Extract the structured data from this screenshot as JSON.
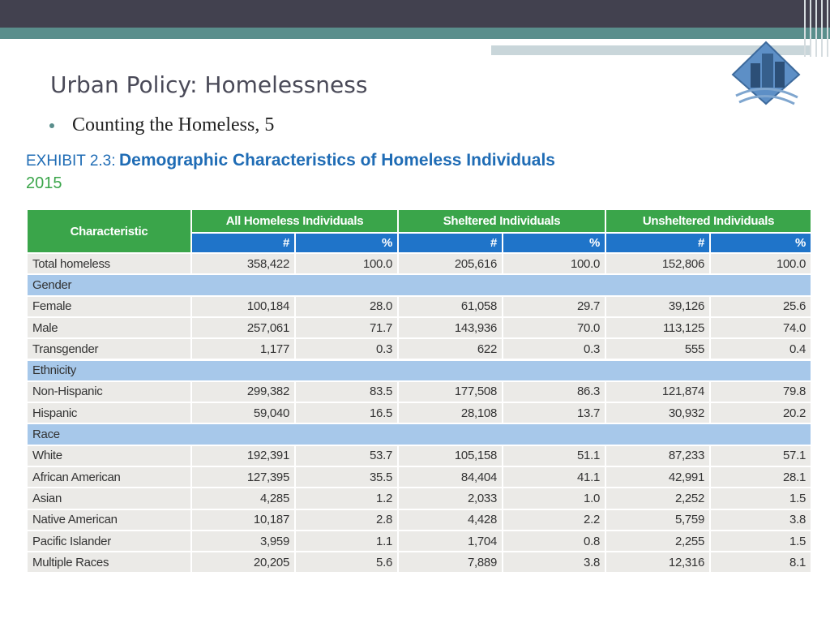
{
  "slide": {
    "title": "Urban Policy: Homelessness",
    "bullet": "Counting the Homeless, 5"
  },
  "exhibit": {
    "label": "EXHIBIT 2.3:",
    "title": "Demographic Characteristics of Homeless Individuals",
    "year": "2015"
  },
  "table": {
    "first_header": "Characteristic",
    "groups": [
      "All Homeless Individuals",
      "Sheltered Individuals",
      "Unsheltered Individuals"
    ],
    "subheaders": [
      "#",
      "%",
      "#",
      "%",
      "#",
      "%"
    ],
    "rows": [
      {
        "label": "Total homeless",
        "cells": [
          "358,422",
          "100.0",
          "205,616",
          "100.0",
          "152,806",
          "100.0"
        ]
      },
      {
        "section": "Gender"
      },
      {
        "label": "Female",
        "cells": [
          "100,184",
          "28.0",
          "61,058",
          "29.7",
          "39,126",
          "25.6"
        ]
      },
      {
        "label": "Male",
        "cells": [
          "257,061",
          "71.7",
          "143,936",
          "70.0",
          "113,125",
          "74.0"
        ]
      },
      {
        "label": "Transgender",
        "cells": [
          "1,177",
          "0.3",
          "622",
          "0.3",
          "555",
          "0.4"
        ]
      },
      {
        "section": "Ethnicity"
      },
      {
        "label": "Non-Hispanic",
        "cells": [
          "299,382",
          "83.5",
          "177,508",
          "86.3",
          "121,874",
          "79.8"
        ]
      },
      {
        "label": "Hispanic",
        "cells": [
          "59,040",
          "16.5",
          "28,108",
          "13.7",
          "30,932",
          "20.2"
        ]
      },
      {
        "section": "Race"
      },
      {
        "label": "White",
        "cells": [
          "192,391",
          "53.7",
          "105,158",
          "51.1",
          "87,233",
          "57.1"
        ]
      },
      {
        "label": "African American",
        "cells": [
          "127,395",
          "35.5",
          "84,404",
          "41.1",
          "42,991",
          "28.1"
        ]
      },
      {
        "label": "Asian",
        "cells": [
          "4,285",
          "1.2",
          "2,033",
          "1.0",
          "2,252",
          "1.5"
        ]
      },
      {
        "label": "Native American",
        "cells": [
          "10,187",
          "2.8",
          "4,428",
          "2.2",
          "5,759",
          "3.8"
        ]
      },
      {
        "label": "Pacific Islander",
        "cells": [
          "3,959",
          "1.1",
          "1,704",
          "0.8",
          "2,255",
          "1.5"
        ]
      },
      {
        "label": "Multiple Races",
        "cells": [
          "20,205",
          "5.6",
          "7,889",
          "3.8",
          "12,316",
          "8.1"
        ]
      }
    ]
  }
}
